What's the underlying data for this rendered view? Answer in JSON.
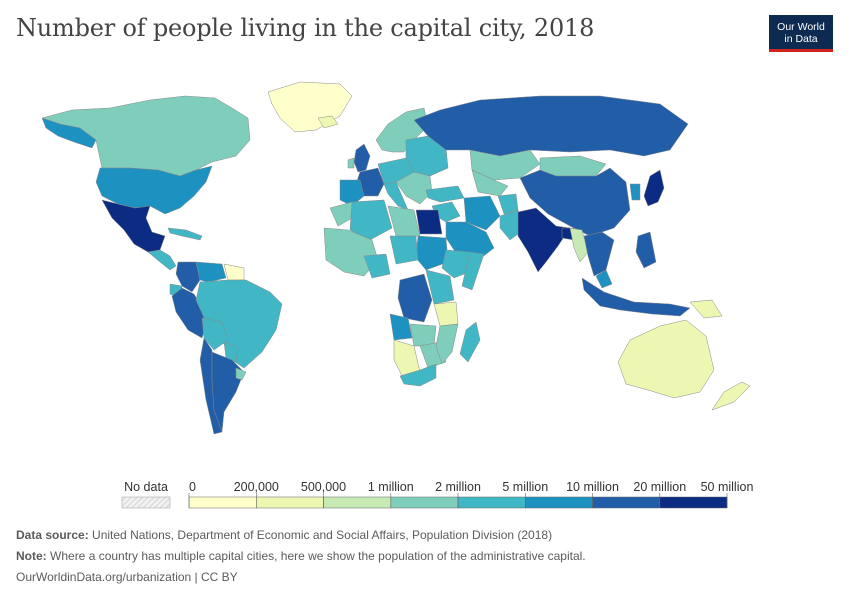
{
  "header": {
    "title": "Number of people living in the capital city, 2018",
    "logo_line1": "Our World",
    "logo_line2": "in Data"
  },
  "chart_data": {
    "type": "choropleth",
    "title": "Number of people living in the capital city, 2018",
    "legend": {
      "no_data_label": "No data",
      "bins": [
        0,
        200000,
        500000,
        1000000,
        2000000,
        5000000,
        10000000,
        20000000,
        50000000
      ],
      "tick_labels": [
        "0",
        "200,000",
        "500,000",
        "1 million",
        "2 million",
        "5 million",
        "10 million",
        "20 million",
        "50 million"
      ],
      "colors": [
        "#ffffcc",
        "#eef7b1",
        "#c7e9b4",
        "#7fcdbb",
        "#41b6c4",
        "#1d91c0",
        "#225ea8",
        "#0c2c84"
      ]
    },
    "regions": [
      {
        "name": "Canada",
        "bin": 3
      },
      {
        "name": "United States",
        "bin": 5
      },
      {
        "name": "Alaska",
        "bin": 5
      },
      {
        "name": "Greenland",
        "bin": 0
      },
      {
        "name": "Mexico",
        "bin": 7
      },
      {
        "name": "Central America",
        "bin": 4
      },
      {
        "name": "Caribbean",
        "bin": 4
      },
      {
        "name": "Colombia",
        "bin": 6
      },
      {
        "name": "Venezuela",
        "bin": 5
      },
      {
        "name": "Guyana",
        "bin": 0
      },
      {
        "name": "Ecuador",
        "bin": 4
      },
      {
        "name": "Peru",
        "bin": 6
      },
      {
        "name": "Brazil",
        "bin": 4
      },
      {
        "name": "Bolivia",
        "bin": 4
      },
      {
        "name": "Paraguay",
        "bin": 4
      },
      {
        "name": "Chile",
        "bin": 6
      },
      {
        "name": "Argentina",
        "bin": 6
      },
      {
        "name": "Uruguay",
        "bin": 3
      },
      {
        "name": "Iceland",
        "bin": 1
      },
      {
        "name": "United Kingdom",
        "bin": 6
      },
      {
        "name": "Ireland",
        "bin": 3
      },
      {
        "name": "Scandinavia",
        "bin": 3
      },
      {
        "name": "France",
        "bin": 6
      },
      {
        "name": "Iberia",
        "bin": 5
      },
      {
        "name": "Central Europe",
        "bin": 4
      },
      {
        "name": "Eastern Europe",
        "bin": 4
      },
      {
        "name": "Italy",
        "bin": 4
      },
      {
        "name": "Balkans",
        "bin": 3
      },
      {
        "name": "Russia",
        "bin": 6
      },
      {
        "name": "Kazakhstan",
        "bin": 3
      },
      {
        "name": "Mongolia",
        "bin": 3
      },
      {
        "name": "China",
        "bin": 6
      },
      {
        "name": "Japan",
        "bin": 7
      },
      {
        "name": "Korea",
        "bin": 5
      },
      {
        "name": "Turkey",
        "bin": 4
      },
      {
        "name": "Middle East",
        "bin": 4
      },
      {
        "name": "Iran",
        "bin": 5
      },
      {
        "name": "Saudi Arabia",
        "bin": 5
      },
      {
        "name": "Central Asia",
        "bin": 3
      },
      {
        "name": "Afghanistan",
        "bin": 4
      },
      {
        "name": "Pakistan",
        "bin": 4
      },
      {
        "name": "India",
        "bin": 7
      },
      {
        "name": "Bangladesh",
        "bin": 7
      },
      {
        "name": "Myanmar",
        "bin": 2
      },
      {
        "name": "Indochina",
        "bin": 6
      },
      {
        "name": "Indonesia",
        "bin": 6
      },
      {
        "name": "Philippines",
        "bin": 6
      },
      {
        "name": "Malaysia",
        "bin": 5
      },
      {
        "name": "Papua New Guinea",
        "bin": 1
      },
      {
        "name": "Australia",
        "bin": 1
      },
      {
        "name": "New Zealand",
        "bin": 1
      },
      {
        "name": "Morocco",
        "bin": 3
      },
      {
        "name": "Algeria",
        "bin": 4
      },
      {
        "name": "Libya",
        "bin": 3
      },
      {
        "name": "Egypt",
        "bin": 7
      },
      {
        "name": "Sudan",
        "bin": 5
      },
      {
        "name": "West Africa",
        "bin": 3
      },
      {
        "name": "Nigeria",
        "bin": 4
      },
      {
        "name": "Chad",
        "bin": 4
      },
      {
        "name": "Ethiopia",
        "bin": 4
      },
      {
        "name": "Somalia",
        "bin": 4
      },
      {
        "name": "DR Congo",
        "bin": 6
      },
      {
        "name": "Angola",
        "bin": 5
      },
      {
        "name": "East Africa",
        "bin": 4
      },
      {
        "name": "Tanzania",
        "bin": 1
      },
      {
        "name": "Zambia",
        "bin": 3
      },
      {
        "name": "Namibia Botswana",
        "bin": 1
      },
      {
        "name": "Southern Africa",
        "bin": 3
      },
      {
        "name": "South Africa",
        "bin": 4
      },
      {
        "name": "Mozambique",
        "bin": 3
      },
      {
        "name": "Madagascar",
        "bin": 4
      }
    ]
  },
  "footer": {
    "source_label": "Data source:",
    "source_text": "United Nations, Department of Economic and Social Affairs, Population Division (2018)",
    "note_label": "Note:",
    "note_text": "Where a country has multiple capital cities, here we show the population of the administrative capital.",
    "url": "OurWorldinData.org/urbanization | CC BY"
  }
}
